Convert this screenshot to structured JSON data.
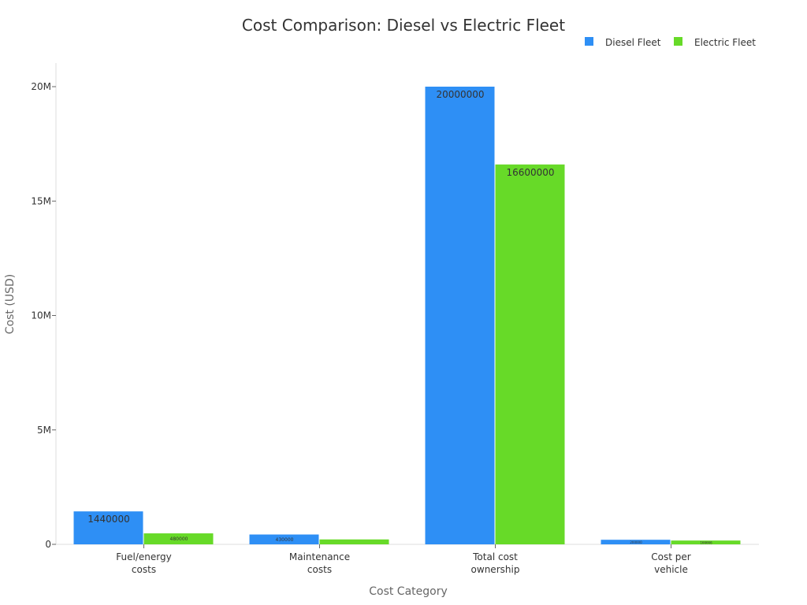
{
  "chart_data": {
    "type": "bar",
    "title": "Cost Comparison: Diesel vs Electric Fleet",
    "xlabel": "Cost Category",
    "ylabel": "Cost (USD)",
    "categories": [
      "Fuel/energy\ncosts",
      "Maintenance\ncosts",
      "Total cost\nownership",
      "Cost per\nvehicle"
    ],
    "series": [
      {
        "name": "Diesel Fleet",
        "color": "#2e8ff5",
        "values": [
          1440000,
          430000,
          20000000,
          200000
        ],
        "labels": [
          "1440000",
          "430000",
          "20000000",
          "200000"
        ]
      },
      {
        "name": "Electric Fleet",
        "color": "#67da28",
        "values": [
          480000,
          215000,
          16600000,
          166666
        ],
        "labels": [
          "480000",
          "",
          "16600000",
          "166666"
        ]
      }
    ],
    "ylim": [
      0,
      21000000
    ],
    "yticks": [
      0,
      5000000,
      10000000,
      15000000,
      20000000
    ],
    "ytick_labels": [
      "0",
      "5M",
      "10M",
      "15M",
      "20M"
    ],
    "grid": false,
    "legend": "top-right"
  }
}
